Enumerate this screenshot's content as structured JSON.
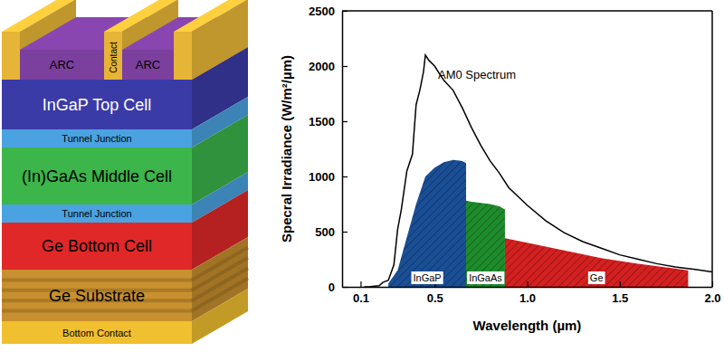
{
  "diagram": {
    "arc": {
      "labels": [
        "ARC",
        "ARC"
      ],
      "color": "#7b3f9e"
    },
    "contact": {
      "label": "Contact",
      "color": "#e6b436"
    },
    "layers": [
      {
        "label": "InGaP Top Cell",
        "color": "#3b3ba8"
      },
      {
        "label": "Tunnel Junction",
        "color": "#4aa3e0"
      },
      {
        "label": "(In)GaAs Middle Cell",
        "color": "#3cb54a"
      },
      {
        "label": "Tunnel Junction",
        "color": "#4aa3e0"
      },
      {
        "label": "Ge Bottom Cell",
        "color": "#e02828"
      },
      {
        "label": "Ge Substrate",
        "color": "#c8902e"
      },
      {
        "label": "Bottom Contact",
        "color": "#f0c030"
      }
    ]
  },
  "chart_data": {
    "type": "area",
    "x_label": "Wavelength (µm)",
    "y_label": "Specral Irradiance (W/m²/µm)",
    "xlim": [
      0,
      2.0
    ],
    "xticks": [
      0.1,
      0.5,
      {
        "value": 1.0,
        "label": "1.0"
      },
      1.5,
      {
        "value": 2.0,
        "label": "2.0"
      }
    ],
    "ylim": [
      0,
      2500
    ],
    "yticks": [
      0,
      500,
      1000,
      1500,
      2000,
      2500
    ],
    "series": [
      {
        "name": "AM0 Spectrum",
        "type": "line",
        "color": "#000000",
        "x": [
          0.12,
          0.15,
          0.2,
          0.22,
          0.25,
          0.28,
          0.3,
          0.32,
          0.35,
          0.38,
          0.4,
          0.42,
          0.44,
          0.45,
          0.47,
          0.5,
          0.53,
          0.55,
          0.6,
          0.65,
          0.7,
          0.75,
          0.8,
          0.85,
          0.9,
          0.95,
          1.0,
          1.1,
          1.2,
          1.3,
          1.4,
          1.5,
          1.6,
          1.7,
          1.8,
          1.9,
          2.0
        ],
        "values": [
          0,
          2,
          10,
          40,
          60,
          200,
          520,
          700,
          1050,
          1200,
          1650,
          1780,
          1950,
          2100,
          2050,
          2000,
          1920,
          1870,
          1780,
          1620,
          1440,
          1280,
          1140,
          1030,
          900,
          820,
          740,
          600,
          490,
          410,
          350,
          290,
          250,
          210,
          180,
          160,
          135
        ]
      },
      {
        "name": "InGaP",
        "type": "area",
        "color": "#1a4f96",
        "x": [
          0.25,
          0.3,
          0.35,
          0.4,
          0.45,
          0.5,
          0.55,
          0.6,
          0.65,
          0.67
        ],
        "values": [
          30,
          150,
          450,
          750,
          1000,
          1080,
          1130,
          1150,
          1140,
          1120
        ]
      },
      {
        "name": "InGaAs",
        "type": "area",
        "color": "#1e8c2c",
        "x": [
          0.67,
          0.7,
          0.75,
          0.8,
          0.85,
          0.88
        ],
        "values": [
          780,
          770,
          760,
          750,
          730,
          700
        ]
      },
      {
        "name": "Ge",
        "type": "area",
        "color": "#d42020",
        "x": [
          0.88,
          1.0,
          1.2,
          1.4,
          1.6,
          1.8,
          1.87
        ],
        "values": [
          440,
          400,
          330,
          260,
          210,
          165,
          150
        ]
      }
    ]
  }
}
